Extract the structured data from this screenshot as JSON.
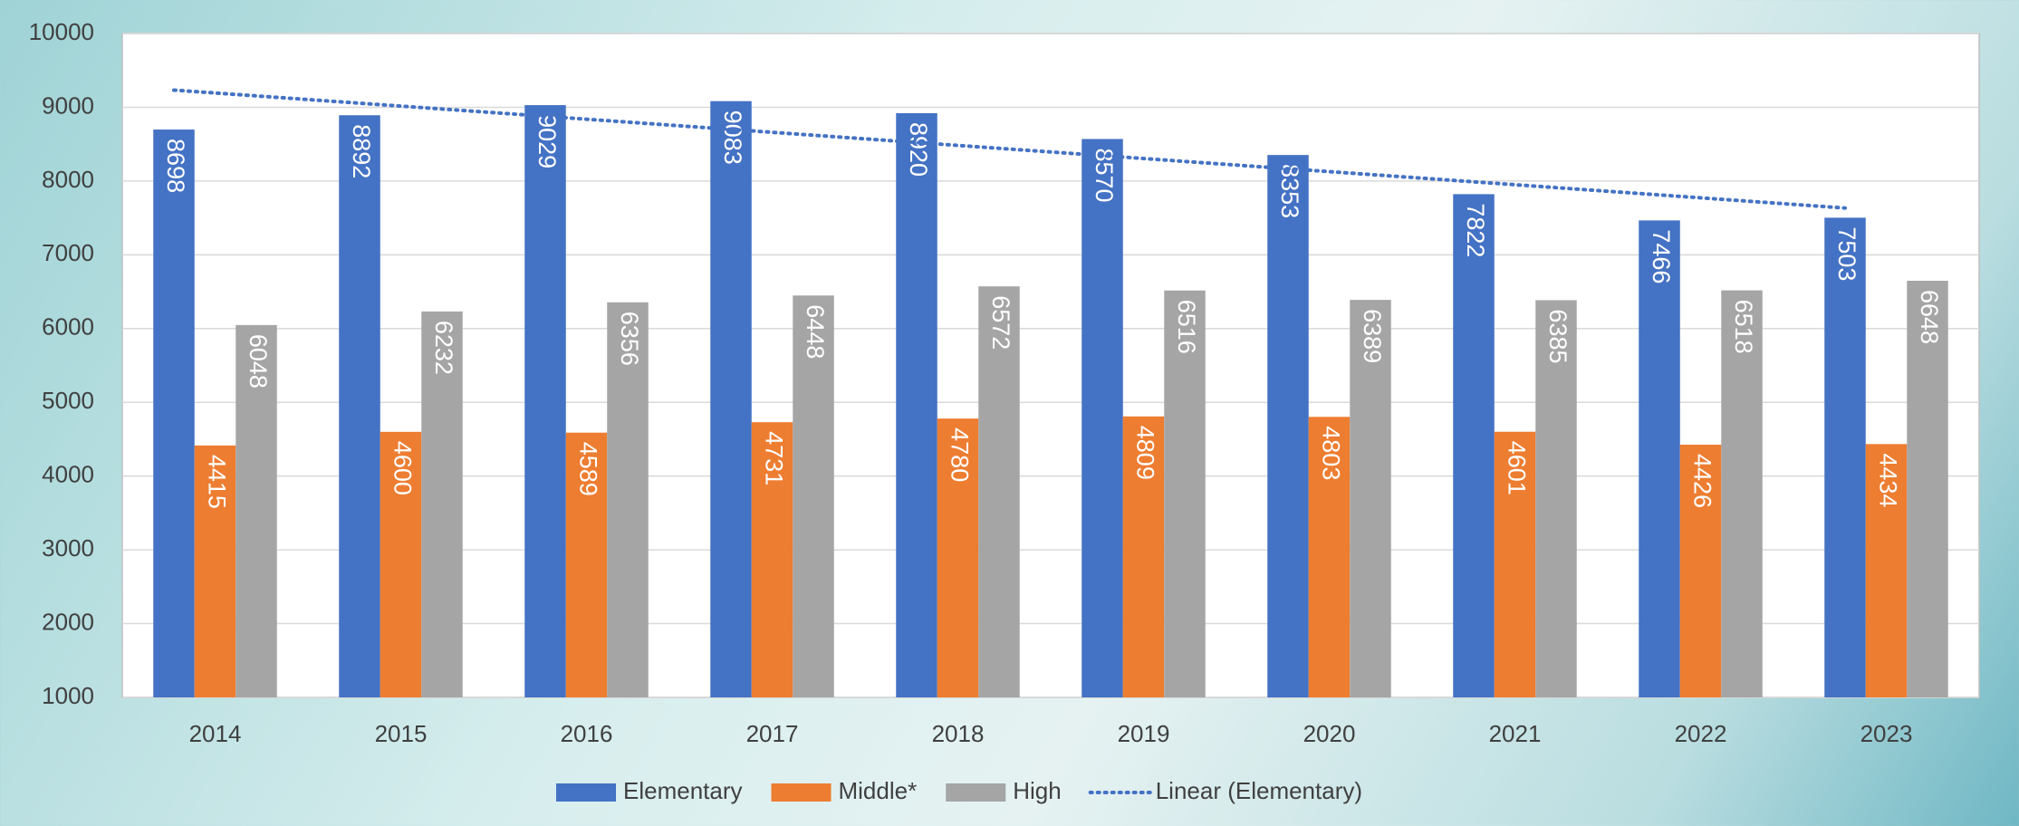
{
  "chart_data": {
    "type": "bar",
    "categories": [
      "2014",
      "2015",
      "2016",
      "2017",
      "2018",
      "2019",
      "2020",
      "2021",
      "2022",
      "2023"
    ],
    "series": [
      {
        "name": "Elementary",
        "color": "#4472c4",
        "values": [
          8698,
          8892,
          9029,
          9083,
          8920,
          8570,
          8353,
          7822,
          7466,
          7503
        ]
      },
      {
        "name": "Middle*",
        "color": "#ed7d31",
        "values": [
          4415,
          4600,
          4589,
          4731,
          4780,
          4809,
          4803,
          4601,
          4426,
          4434
        ]
      },
      {
        "name": "High",
        "color": "#a5a5a5",
        "values": [
          6048,
          6232,
          6356,
          6448,
          6572,
          6516,
          6389,
          6385,
          6518,
          6648
        ]
      }
    ],
    "trendline": {
      "name": "Linear (Elementary)",
      "series": 0,
      "color": "#4472c4"
    },
    "ylim": [
      1000,
      10000
    ],
    "yticks": [
      1000,
      2000,
      3000,
      4000,
      5000,
      6000,
      7000,
      8000,
      9000,
      10000
    ],
    "grid": true,
    "legend": "bottom"
  }
}
